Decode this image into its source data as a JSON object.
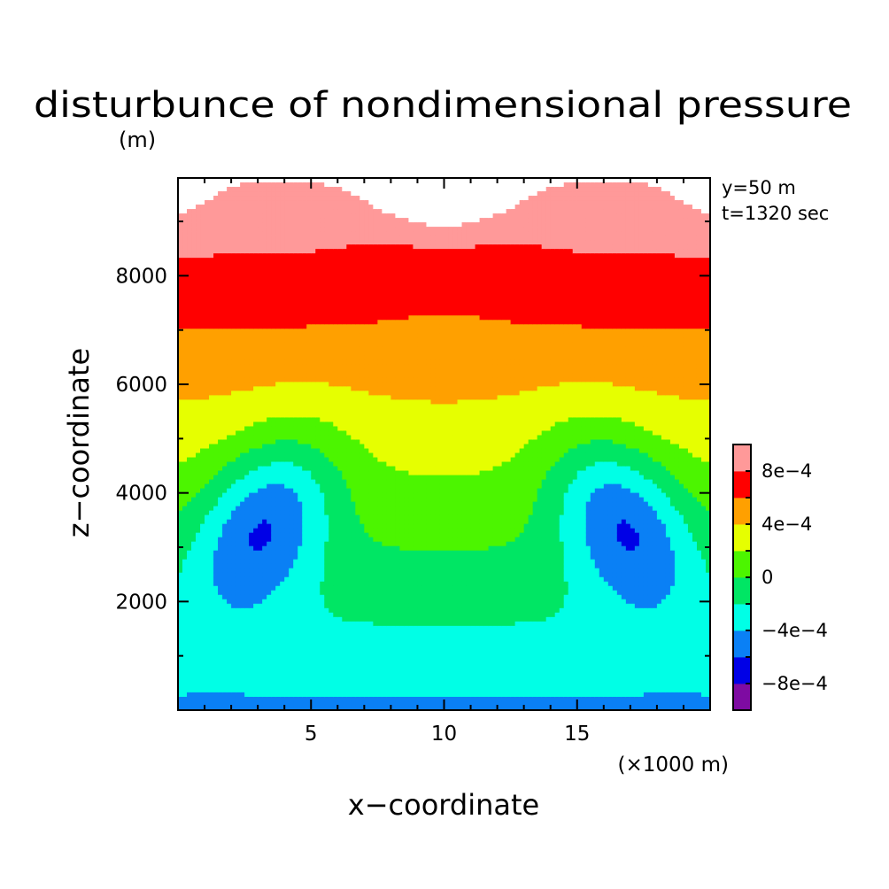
{
  "chart_data": {
    "type": "heatmap",
    "title": "disturbunce of nondimensional pressure",
    "units_label": "(m)",
    "xlabel": "x−coordinate",
    "ylabel": "z−coordinate",
    "x_unit_label": "(×1000 m)",
    "info_lines": [
      "y=50 m",
      "t=1320 sec"
    ],
    "xlim": [
      0,
      20
    ],
    "ylim": [
      0,
      9800
    ],
    "x_ticks": [
      {
        "value": 5,
        "label": "5"
      },
      {
        "value": 10,
        "label": "10"
      },
      {
        "value": 15,
        "label": "15"
      }
    ],
    "x_minor_step": 1,
    "y_ticks": [
      {
        "value": 2000,
        "label": "2000"
      },
      {
        "value": 4000,
        "label": "4000"
      },
      {
        "value": 6000,
        "label": "6000"
      },
      {
        "value": 8000,
        "label": "8000"
      }
    ],
    "y_minor_step": 1000,
    "grid": false,
    "legend": "colorbar-right",
    "field_model": {
      "mirror_x_about": 10,
      "background_slope_per_km_height": 0.000147,
      "background_offset": -0.000432,
      "lobes": [
        {
          "x": 3.3,
          "z": 3500,
          "sx": 2.45,
          "sz": 1500,
          "amp": -0.00068,
          "tilt": -0.35
        },
        {
          "x": -0.5,
          "z": 10300,
          "sx": 1.5,
          "sz": 950,
          "amp": 0.00042
        },
        {
          "x": 10,
          "z": 10500,
          "sx": 2.3,
          "sz": 1400,
          "amp": 0.00072
        },
        {
          "x": 10,
          "z": 8300,
          "sx": 3.2,
          "sz": 1000,
          "amp": -0.00012
        }
      ]
    },
    "levels": [
      -0.001,
      -0.0008,
      -0.0006,
      -0.0004,
      -0.0002,
      0,
      0.0002,
      0.0004,
      0.0006,
      0.0008,
      0.001,
      0.0012
    ],
    "level_colors": [
      "#7e0ba2",
      "#0000e6",
      "#0a80f5",
      "#00ffe6",
      "#00e664",
      "#4cf500",
      "#e6ff00",
      "#ffa000",
      "#ff0000",
      "#ff9999"
    ],
    "above_max_color": "#ffffff",
    "colorbar_labels": [
      {
        "value": -0.0008,
        "label": "−8e−4"
      },
      {
        "value": -0.0004,
        "label": "−4e−4"
      },
      {
        "value": 0,
        "label": "0"
      },
      {
        "value": 0.0004,
        "label": "4e−4"
      },
      {
        "value": 0.0008,
        "label": "8e−4"
      }
    ]
  }
}
